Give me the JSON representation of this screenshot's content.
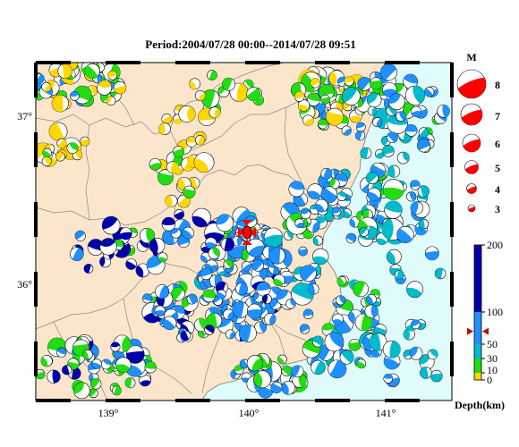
{
  "title": "Period:2004/07/28 00:00--2014/07/28 09:51",
  "lon_labels": [
    "139°",
    "140°",
    "141°"
  ],
  "lat_labels": [
    "37°",
    "36°"
  ],
  "magnitude": {
    "header": "M",
    "items": [
      "8",
      "7",
      "6",
      "5",
      "4",
      "3"
    ]
  },
  "depth": {
    "label": "Depth(km)",
    "ticks": [
      "200",
      "100",
      "50",
      "30",
      "10",
      "0"
    ],
    "marker_depth_km": 70
  },
  "colors": {
    "land": "#fbe6cc",
    "sea": "#e0fbfb",
    "shallow": "#ffd700",
    "green": "#22dd11",
    "cyan": "#00bbcc",
    "light_blue": "#1e90ff",
    "deep": "#0000aa",
    "main_shock": "#ff0000"
  }
}
